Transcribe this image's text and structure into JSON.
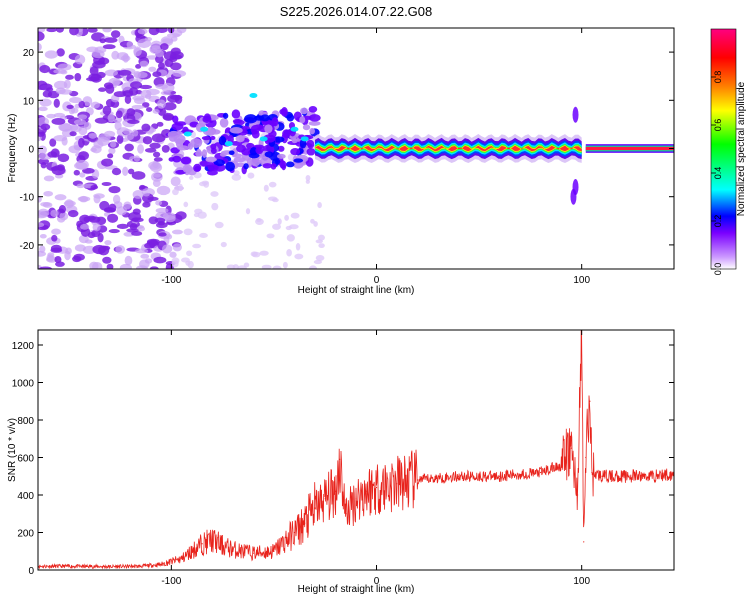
{
  "title": "S225.2026.014.07.22.G08",
  "chart_data": [
    {
      "type": "heatmap",
      "xlabel": "Height of straight line (km)",
      "ylabel": "Frequency (Hz)",
      "xlim": [
        -165,
        145
      ],
      "ylim": [
        -25,
        25
      ],
      "xticks": [
        -100,
        0,
        100
      ],
      "yticks": [
        -20,
        -10,
        0,
        10,
        20
      ],
      "colorbar": {
        "label": "Normalized spectral amplitude",
        "range": [
          0,
          1
        ],
        "ticks": [
          "0.0",
          "0.2",
          "0.4",
          "0.6",
          "0.8"
        ],
        "colors": [
          "#ffffff",
          "#cc99ff",
          "#7a00ff",
          "#0000ff",
          "#00ffff",
          "#00ff00",
          "#ffff00",
          "#ff8000",
          "#ff0000",
          "#ff0080"
        ]
      },
      "regions": [
        {
          "x_range": [
            -165,
            -100
          ],
          "description": "diffuse scattered low-amplitude noise across all frequencies",
          "amplitude": 0.15
        },
        {
          "x_range": [
            -100,
            -30
          ],
          "freq_center": 3,
          "freq_spread": 6,
          "amplitude": 0.35
        },
        {
          "x_range": [
            -30,
            100
          ],
          "freq_center": 0,
          "freq_spread": 1,
          "amplitude": 0.85
        },
        {
          "x_range": [
            100,
            145
          ],
          "freq_center": 0,
          "freq_spread": 0.7,
          "amplitude": 0.95
        }
      ]
    },
    {
      "type": "line",
      "xlabel": "Height of straight line (km)",
      "ylabel": "SNR (10 * v/v)",
      "xlim": [
        -165,
        145
      ],
      "ylim": [
        0,
        1280
      ],
      "xticks": [
        -100,
        0,
        100
      ],
      "yticks": [
        0,
        200,
        400,
        600,
        800,
        1000,
        1200
      ],
      "color": "#e8231c",
      "x": [
        -165,
        -150,
        -130,
        -115,
        -105,
        -95,
        -85,
        -80,
        -75,
        -70,
        -60,
        -50,
        -40,
        -35,
        -30,
        -25,
        -20,
        -18,
        -15,
        -10,
        -5,
        0,
        10,
        20,
        30,
        40,
        50,
        60,
        70,
        80,
        90,
        95,
        98,
        100,
        101,
        102,
        104,
        105,
        110,
        120,
        130,
        145
      ],
      "y": [
        20,
        20,
        18,
        20,
        30,
        60,
        140,
        160,
        130,
        110,
        90,
        100,
        200,
        250,
        330,
        380,
        420,
        590,
        300,
        380,
        420,
        440,
        460,
        480,
        490,
        500,
        500,
        500,
        510,
        520,
        560,
        650,
        400,
        1280,
        150,
        600,
        900,
        520,
        500,
        500,
        500,
        510
      ]
    }
  ]
}
